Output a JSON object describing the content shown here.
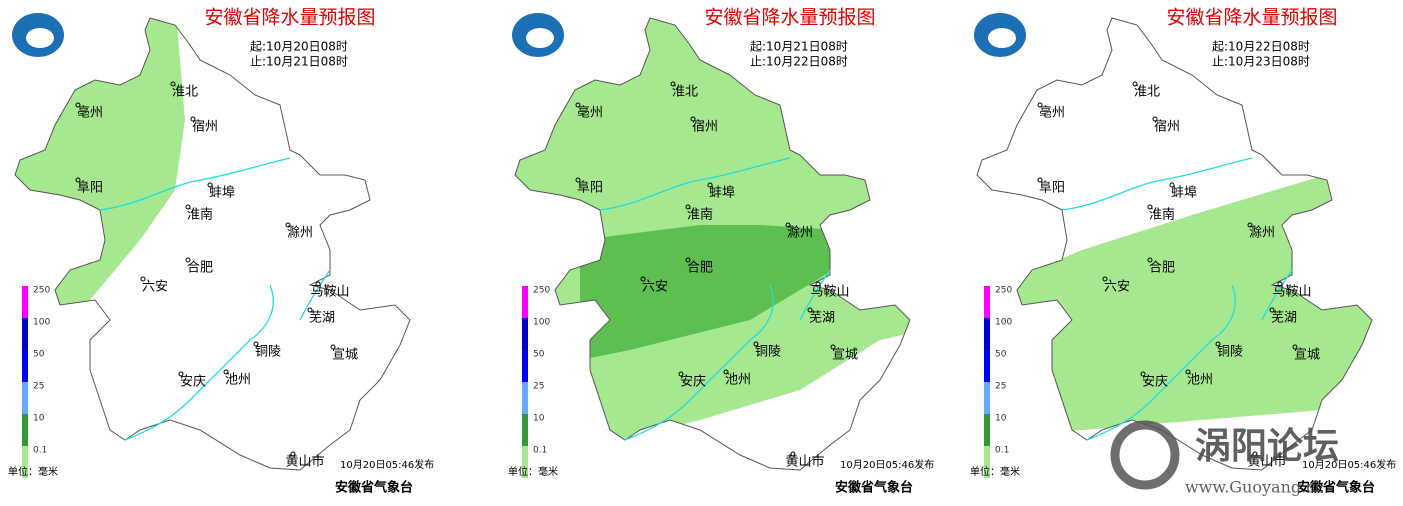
{
  "panels": [
    {
      "title": "安徽省降水量预报图",
      "start": "起:10月20日08时",
      "end": "止:10月21日08时",
      "issued": "10月20日05:46发布",
      "issuer": "安徽省气象台",
      "unit": "单位：毫米"
    },
    {
      "title": "安徽省降水量预报图",
      "start": "起:10月21日08时",
      "end": "止:10月22日08时",
      "issued": "10月20日05:46发布",
      "issuer": "安徽省气象台",
      "unit": "单位：毫米"
    },
    {
      "title": "安徽省降水量预报图",
      "start": "起:10月22日08时",
      "end": "止:10月23日08时",
      "issued": "10月20日05:46发布",
      "issuer": "安徽省气象台",
      "unit": "单位：毫米"
    }
  ],
  "legend": [
    {
      "label": "250",
      "color": "#ff00ff"
    },
    {
      "label": "100",
      "color": "#0000cc"
    },
    {
      "label": "50",
      "color": "#0000ff"
    },
    {
      "label": "25",
      "color": "#66aaff"
    },
    {
      "label": "10",
      "color": "#339933"
    },
    {
      "label": "0.1",
      "color": "#a6e88f"
    }
  ],
  "cities": [
    "淮北",
    "亳州",
    "宿州",
    "阜阳",
    "蚌埠",
    "淮南",
    "滁州",
    "合肥",
    "六安",
    "马鞍山",
    "芜湖",
    "铜陵",
    "宣城",
    "安庆",
    "池州",
    "黄山市"
  ],
  "watermark": {
    "name": "涡阳论坛",
    "url": "www.Guoyang.cc"
  }
}
